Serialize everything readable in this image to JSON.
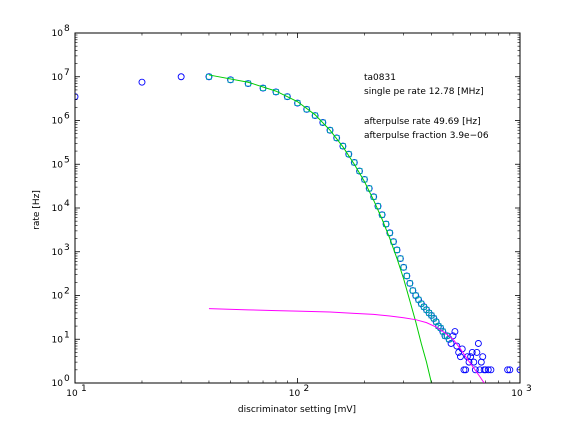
{
  "chart_data": {
    "type": "scatter",
    "xlabel": "discriminator setting [mV]",
    "ylabel": "rate [Hz]",
    "xscale": "log",
    "yscale": "log",
    "xlim": [
      10,
      1000
    ],
    "ylim": [
      1,
      100000000
    ],
    "x_ticks": [
      {
        "value": 10,
        "base": "10",
        "exp": "1"
      },
      {
        "value": 100,
        "base": "10",
        "exp": "2"
      },
      {
        "value": 1000,
        "base": "10",
        "exp": "3"
      }
    ],
    "y_ticks": [
      {
        "value": 1,
        "base": "10",
        "exp": "0"
      },
      {
        "value": 10,
        "base": "10",
        "exp": "1"
      },
      {
        "value": 100,
        "base": "10",
        "exp": "2"
      },
      {
        "value": 1000,
        "base": "10",
        "exp": "3"
      },
      {
        "value": 10000,
        "base": "10",
        "exp": "4"
      },
      {
        "value": 100000,
        "base": "10",
        "exp": "5"
      },
      {
        "value": 1000000,
        "base": "10",
        "exp": "6"
      },
      {
        "value": 10000000,
        "base": "10",
        "exp": "7"
      },
      {
        "value": 100000000,
        "base": "10",
        "exp": "8"
      }
    ],
    "grid": false,
    "annotations": [
      "ta0831",
      "single pe rate 12.78 [MHz]",
      "afterpulse rate 49.69 [Hz]",
      "afterpulse fraction 3.9e−06"
    ],
    "series": [
      {
        "marker": "circle",
        "color": "#0000ff",
        "points": [
          [
            10,
            3500000
          ],
          [
            20,
            7500000
          ],
          [
            30,
            10000000
          ],
          [
            40,
            10000000
          ],
          [
            50,
            8500000
          ],
          [
            60,
            7000000
          ],
          [
            70,
            5500000
          ],
          [
            80,
            4500000
          ],
          [
            90,
            3500000
          ],
          [
            100,
            2500000
          ],
          [
            110,
            1800000
          ],
          [
            120,
            1300000
          ],
          [
            130,
            900000
          ],
          [
            140,
            600000
          ],
          [
            150,
            400000
          ],
          [
            160,
            260000
          ],
          [
            170,
            170000
          ],
          [
            180,
            110000
          ],
          [
            190,
            70000
          ],
          [
            200,
            45000
          ],
          [
            210,
            28000
          ],
          [
            220,
            18000
          ],
          [
            230,
            11000
          ],
          [
            240,
            7000
          ],
          [
            250,
            4300
          ],
          [
            260,
            2700
          ],
          [
            270,
            1700
          ],
          [
            280,
            1100
          ],
          [
            290,
            700
          ],
          [
            300,
            440
          ],
          [
            310,
            280
          ],
          [
            320,
            190
          ],
          [
            330,
            130
          ],
          [
            340,
            100
          ],
          [
            350,
            80
          ],
          [
            360,
            65
          ],
          [
            370,
            55
          ],
          [
            380,
            47
          ],
          [
            390,
            40
          ],
          [
            400,
            35
          ],
          [
            410,
            30
          ],
          [
            420,
            25
          ],
          [
            430,
            20
          ],
          [
            440,
            18
          ],
          [
            450,
            15
          ],
          [
            460,
            12
          ],
          [
            470,
            12
          ],
          [
            480,
            10
          ],
          [
            490,
            8
          ],
          [
            500,
            12
          ],
          [
            510,
            15
          ],
          [
            520,
            7
          ],
          [
            530,
            5
          ],
          [
            540,
            4
          ],
          [
            550,
            6
          ],
          [
            560,
            2
          ],
          [
            570,
            2
          ],
          [
            580,
            4
          ],
          [
            590,
            3
          ],
          [
            600,
            4
          ],
          [
            610,
            5
          ],
          [
            620,
            3
          ],
          [
            630,
            2
          ],
          [
            640,
            5
          ],
          [
            650,
            8
          ],
          [
            660,
            2
          ],
          [
            670,
            3
          ],
          [
            680,
            4
          ],
          [
            690,
            2
          ],
          [
            700,
            2
          ],
          [
            720,
            2
          ],
          [
            740,
            2
          ],
          [
            880,
            2
          ],
          [
            900,
            2
          ],
          [
            1000,
            2
          ]
        ]
      },
      {
        "marker": "square",
        "color": "#00aaaa",
        "points": [
          [
            40,
            10000000
          ],
          [
            50,
            8500000
          ],
          [
            60,
            7000000
          ],
          [
            70,
            5500000
          ],
          [
            80,
            4500000
          ],
          [
            90,
            3500000
          ],
          [
            100,
            2500000
          ],
          [
            110,
            1800000
          ],
          [
            120,
            1300000
          ],
          [
            130,
            900000
          ],
          [
            140,
            600000
          ],
          [
            150,
            400000
          ],
          [
            160,
            260000
          ],
          [
            170,
            170000
          ],
          [
            180,
            110000
          ],
          [
            190,
            70000
          ],
          [
            200,
            45000
          ],
          [
            210,
            28000
          ],
          [
            220,
            18000
          ],
          [
            230,
            11000
          ],
          [
            240,
            7000
          ],
          [
            250,
            4300
          ],
          [
            260,
            2700
          ],
          [
            270,
            1700
          ],
          [
            280,
            1100
          ],
          [
            290,
            700
          ],
          [
            300,
            440
          ],
          [
            310,
            280
          ],
          [
            320,
            190
          ],
          [
            330,
            130
          ],
          [
            340,
            100
          ],
          [
            350,
            80
          ],
          [
            360,
            65
          ],
          [
            370,
            55
          ],
          [
            380,
            47
          ],
          [
            390,
            40
          ],
          [
            400,
            35
          ],
          [
            410,
            30
          ],
          [
            420,
            25
          ],
          [
            430,
            20
          ],
          [
            440,
            18
          ],
          [
            450,
            15
          ],
          [
            460,
            12
          ],
          [
            470,
            12
          ],
          [
            480,
            10
          ]
        ]
      },
      {
        "type": "line",
        "color": "#00cc00",
        "points": [
          [
            40,
            11000000
          ],
          [
            60,
            7500000
          ],
          [
            80,
            4700000
          ],
          [
            100,
            2700000
          ],
          [
            120,
            1350000
          ],
          [
            140,
            600000
          ],
          [
            160,
            250000
          ],
          [
            180,
            100000
          ],
          [
            200,
            40000
          ],
          [
            220,
            15000
          ],
          [
            240,
            5500
          ],
          [
            260,
            2000
          ],
          [
            280,
            700
          ],
          [
            300,
            240
          ],
          [
            320,
            75
          ],
          [
            340,
            25
          ],
          [
            360,
            8
          ],
          [
            380,
            3
          ],
          [
            400,
            1
          ]
        ]
      },
      {
        "type": "line",
        "color": "#ff00ff",
        "points": [
          [
            40,
            50
          ],
          [
            60,
            47
          ],
          [
            80,
            45
          ],
          [
            100,
            44
          ],
          [
            140,
            42
          ],
          [
            180,
            39
          ],
          [
            220,
            37
          ],
          [
            260,
            34
          ],
          [
            300,
            31
          ],
          [
            340,
            28
          ],
          [
            380,
            24
          ],
          [
            420,
            19
          ],
          [
            460,
            14
          ],
          [
            500,
            10
          ],
          [
            540,
            6
          ],
          [
            580,
            3.5
          ],
          [
            620,
            2.2
          ],
          [
            660,
            1.4
          ],
          [
            690,
            1
          ]
        ]
      }
    ]
  }
}
